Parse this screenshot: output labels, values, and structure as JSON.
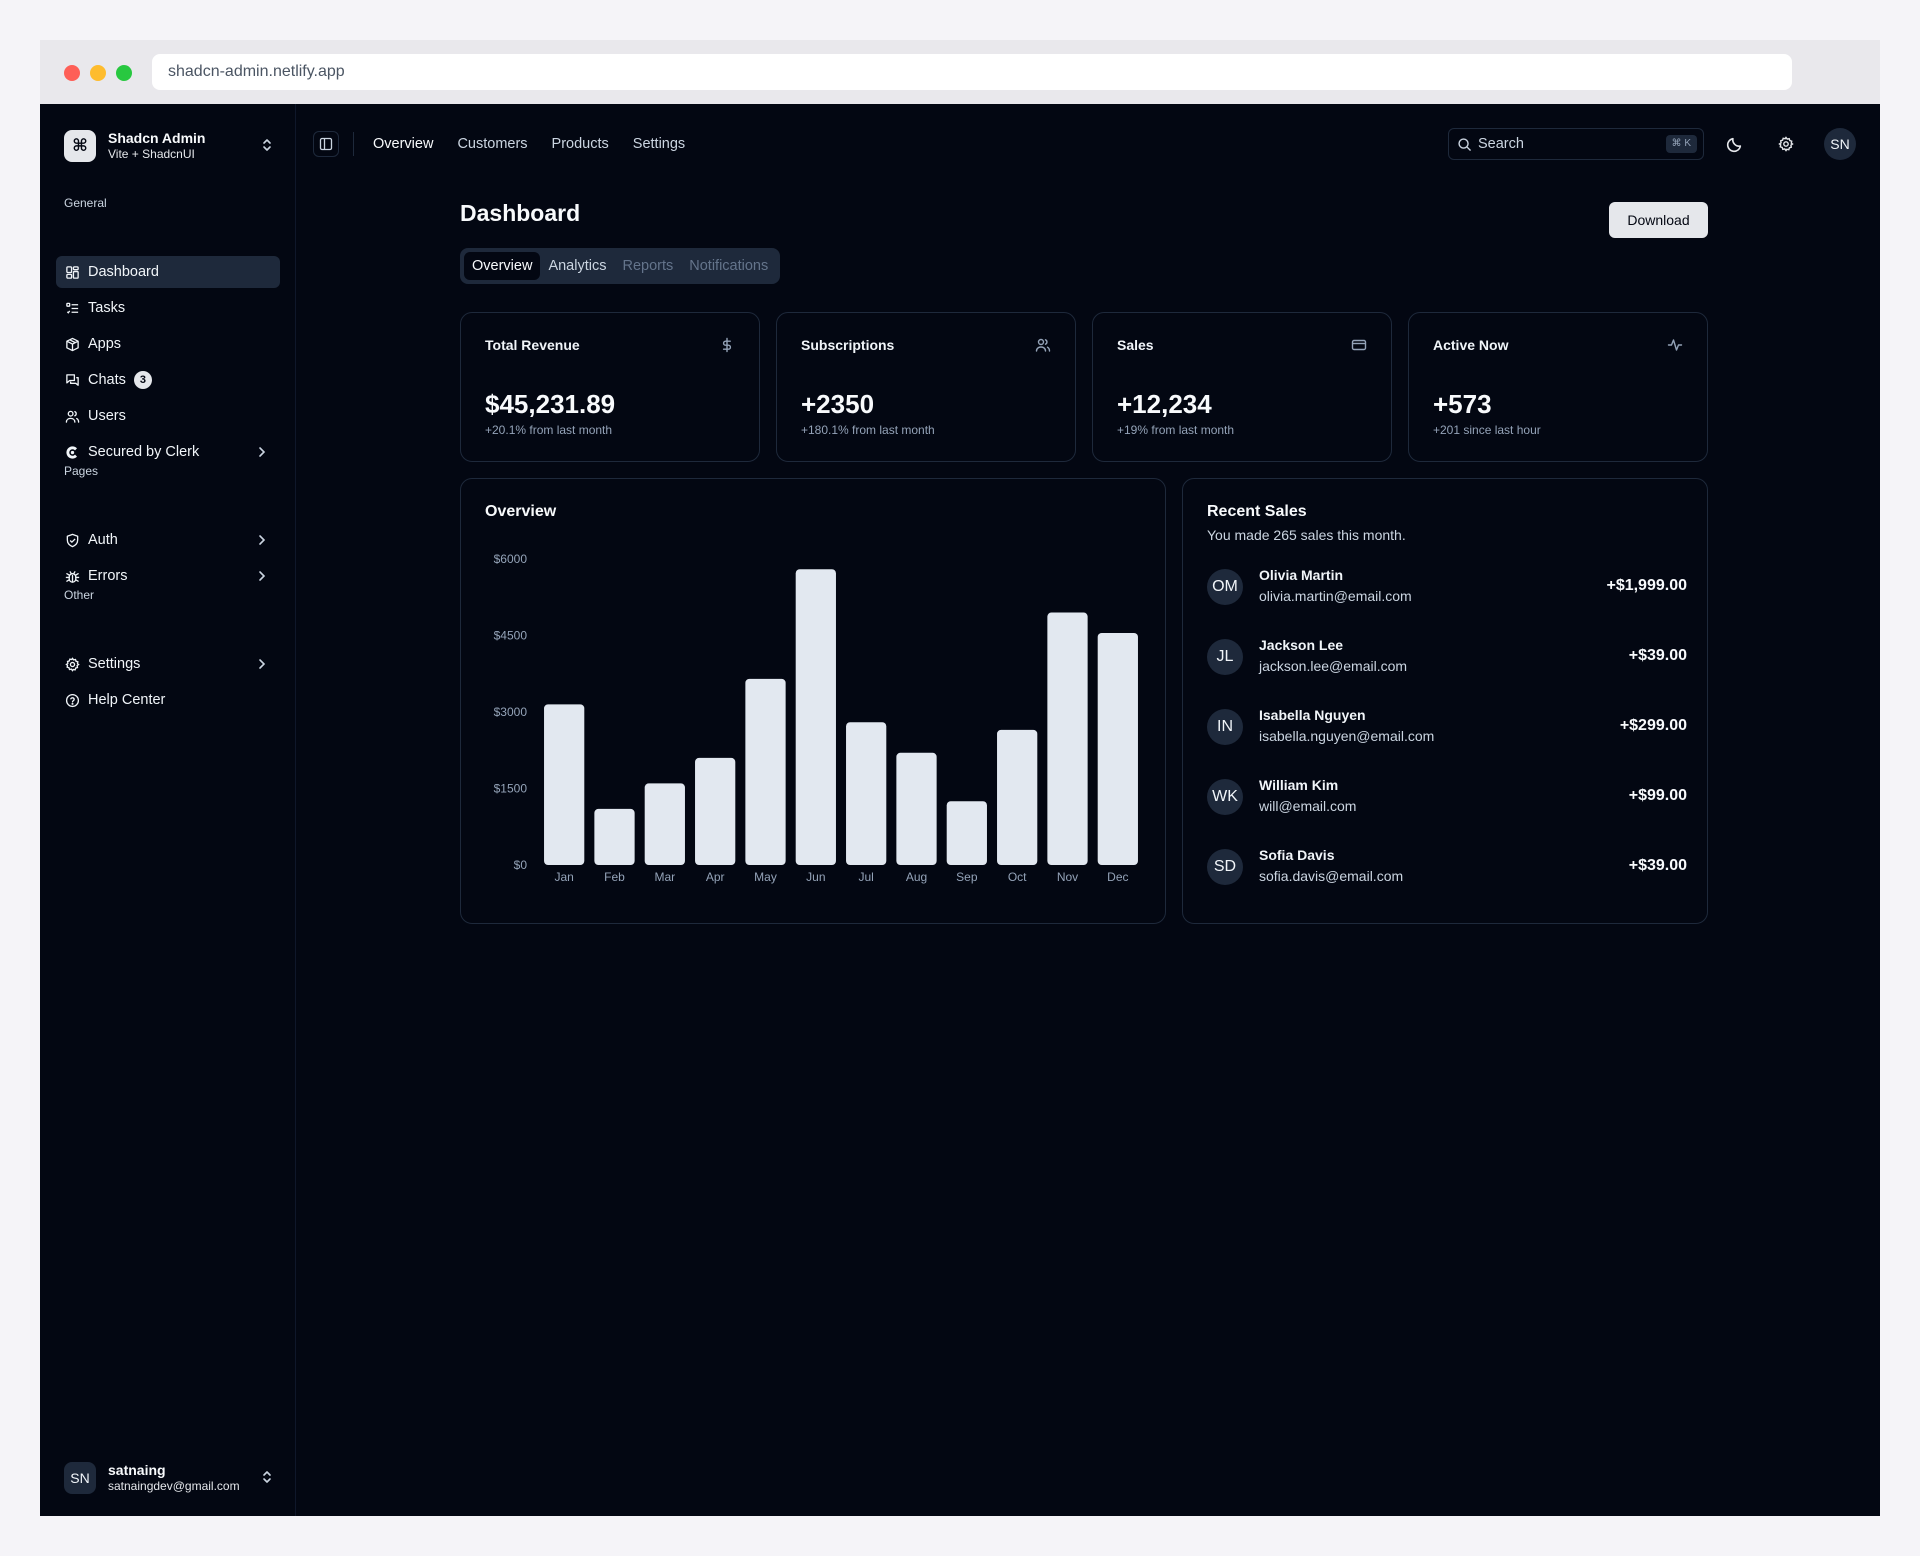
{
  "browser": {
    "url": "shadcn-admin.netlify.app"
  },
  "brand": {
    "title": "Shadcn Admin",
    "subtitle": "Vite + ShadcnUI",
    "logo_glyph": "⌘"
  },
  "sidebar": {
    "groups": [
      {
        "label": "General"
      },
      {
        "label": "Pages"
      },
      {
        "label": "Other"
      }
    ],
    "items": [
      {
        "label": "Dashboard",
        "icon": "layout-dashboard-icon"
      },
      {
        "label": "Tasks",
        "icon": "list-todo-icon"
      },
      {
        "label": "Apps",
        "icon": "package-icon"
      },
      {
        "label": "Chats",
        "icon": "messages-icon",
        "badge": "3"
      },
      {
        "label": "Users",
        "icon": "users-icon"
      },
      {
        "label": "Secured by Clerk",
        "icon": "clerk-icon"
      },
      {
        "label": "Auth",
        "icon": "shield-check-icon"
      },
      {
        "label": "Errors",
        "icon": "bug-icon"
      },
      {
        "label": "Settings",
        "icon": "gear-icon"
      },
      {
        "label": "Help Center",
        "icon": "help-circle-icon"
      }
    ]
  },
  "user": {
    "initials": "SN",
    "name": "satnaing",
    "email": "satnaingdev@gmail.com"
  },
  "topnav": {
    "links": [
      "Overview",
      "Customers",
      "Products",
      "Settings"
    ],
    "search_placeholder": "Search",
    "search_shortcut": "⌘ K",
    "avatar": "SN"
  },
  "page": {
    "title": "Dashboard",
    "download_label": "Download",
    "tabs": [
      "Overview",
      "Analytics",
      "Reports",
      "Notifications"
    ]
  },
  "stats": [
    {
      "title": "Total Revenue",
      "value": "$45,231.89",
      "sub": "+20.1% from last month",
      "icon": "dollar-icon"
    },
    {
      "title": "Subscriptions",
      "value": "+2350",
      "sub": "+180.1% from last month",
      "icon": "users-icon"
    },
    {
      "title": "Sales",
      "value": "+12,234",
      "sub": "+19% from last month",
      "icon": "credit-card-icon"
    },
    {
      "title": "Active Now",
      "value": "+573",
      "sub": "+201 since last hour",
      "icon": "activity-icon"
    }
  ],
  "overview": {
    "title": "Overview"
  },
  "chart_data": {
    "type": "bar",
    "title": "Overview",
    "categories": [
      "Jan",
      "Feb",
      "Mar",
      "Apr",
      "May",
      "Jun",
      "Jul",
      "Aug",
      "Sep",
      "Oct",
      "Nov",
      "Dec"
    ],
    "values": [
      3150,
      1100,
      1600,
      2100,
      3650,
      5800,
      2800,
      2200,
      1250,
      2650,
      4950,
      4550
    ],
    "yticks": [
      "$0",
      "$1500",
      "$3000",
      "$4500",
      "$6000"
    ],
    "ylim": [
      0,
      6000
    ],
    "bar_color": "#e2e8f0",
    "grid": false
  },
  "recent_sales": {
    "title": "Recent Sales",
    "subtitle": "You made 265 sales this month.",
    "rows": [
      {
        "initials": "OM",
        "name": "Olivia Martin",
        "email": "olivia.martin@email.com",
        "amount": "+$1,999.00"
      },
      {
        "initials": "JL",
        "name": "Jackson Lee",
        "email": "jackson.lee@email.com",
        "amount": "+$39.00"
      },
      {
        "initials": "IN",
        "name": "Isabella Nguyen",
        "email": "isabella.nguyen@email.com",
        "amount": "+$299.00"
      },
      {
        "initials": "WK",
        "name": "William Kim",
        "email": "will@email.com",
        "amount": "+$99.00"
      },
      {
        "initials": "SD",
        "name": "Sofia Davis",
        "email": "sofia.davis@email.com",
        "amount": "+$39.00"
      }
    ]
  }
}
